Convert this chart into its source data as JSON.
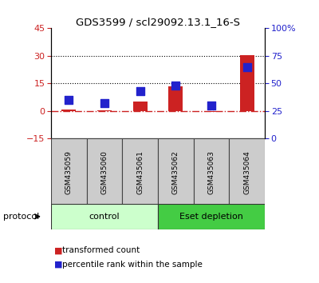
{
  "title": "GDS3599 / scl29092.13.1_16-S",
  "samples": [
    "GSM435059",
    "GSM435060",
    "GSM435061",
    "GSM435062",
    "GSM435063",
    "GSM435064"
  ],
  "transformed_count": [
    1.0,
    0.5,
    5.0,
    13.5,
    -0.5,
    30.5
  ],
  "percentile_rank": [
    35,
    32,
    43,
    48,
    30,
    65
  ],
  "left_ylim": [
    -15,
    45
  ],
  "right_ylim": [
    0,
    100
  ],
  "left_yticks": [
    -15,
    0,
    15,
    30,
    45
  ],
  "right_yticks": [
    0,
    25,
    50,
    75,
    100
  ],
  "right_yticklabels": [
    "0",
    "25",
    "50",
    "75",
    "100%"
  ],
  "hlines": [
    15,
    30
  ],
  "bar_color": "#cc2222",
  "dot_color": "#2222cc",
  "zero_line_color": "#cc2222",
  "control_color_light": "#ccffcc",
  "control_color_dark": "#44cc44",
  "protocol_groups": [
    {
      "label": "control",
      "start": 0,
      "end": 2,
      "color": "#ccffcc"
    },
    {
      "label": "Eset depletion",
      "start": 3,
      "end": 5,
      "color": "#44cc44"
    }
  ],
  "protocol_label": "protocol",
  "legend_items": [
    {
      "label": "transformed count",
      "color": "#cc2222"
    },
    {
      "label": "percentile rank within the sample",
      "color": "#2222cc"
    }
  ],
  "left_tick_color": "#cc2222",
  "right_tick_color": "#2222cc",
  "bar_width": 0.4,
  "dot_size": 45
}
